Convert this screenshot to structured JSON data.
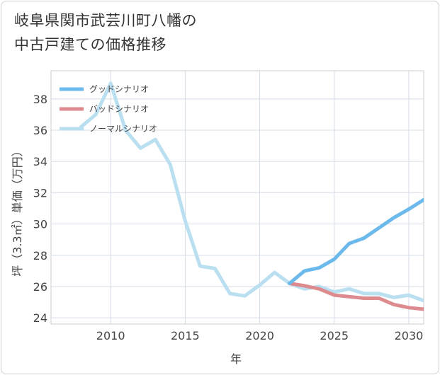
{
  "title": {
    "line1": "岐阜県関市武芸川町八幡の",
    "line2": "中古戸建ての価格推移"
  },
  "chart_data": {
    "type": "line",
    "title": "岐阜県関市武芸川町八幡の中古戸建ての価格推移",
    "xlabel": "年",
    "ylabel": "坪（3.3㎡）単価（万円）",
    "xlim": [
      2006,
      2031
    ],
    "ylim": [
      23.6,
      39.8
    ],
    "xticks": [
      2010,
      2015,
      2020,
      2025,
      2030
    ],
    "yticks": [
      24,
      26,
      28,
      30,
      32,
      34,
      36,
      38
    ],
    "grid": true,
    "legend_position": "top-left",
    "series": [
      {
        "name": "グッドシナリオ",
        "color": "#6cb9ec",
        "x": [
          2022,
          2023,
          2024,
          2025,
          2026,
          2027,
          2028,
          2029,
          2030,
          2031
        ],
        "y": [
          26.2,
          27.0,
          27.2,
          27.75,
          28.75,
          29.1,
          29.75,
          30.4,
          30.95,
          31.55
        ]
      },
      {
        "name": "バッドシナリオ",
        "color": "#dd8b8f",
        "x": [
          2022,
          2023,
          2024,
          2025,
          2026,
          2027,
          2028,
          2029,
          2030,
          2031
        ],
        "y": [
          26.2,
          26.05,
          25.85,
          25.45,
          25.35,
          25.25,
          25.25,
          24.85,
          24.65,
          24.55
        ]
      },
      {
        "name": "ノーマルシナリオ",
        "color": "#b9dff0",
        "x": [
          2008,
          2009,
          2010,
          2011,
          2012,
          2013,
          2014,
          2015,
          2016,
          2017,
          2018,
          2019,
          2020,
          2021,
          2022,
          2023,
          2024,
          2025,
          2026,
          2027,
          2028,
          2029,
          2030,
          2031
        ],
        "y": [
          36.2,
          37.0,
          39.0,
          36.0,
          34.85,
          35.4,
          33.8,
          30.2,
          27.3,
          27.15,
          25.55,
          25.4,
          26.1,
          26.9,
          26.2,
          25.85,
          26.0,
          25.65,
          25.85,
          25.55,
          25.55,
          25.3,
          25.45,
          25.1
        ]
      }
    ]
  }
}
